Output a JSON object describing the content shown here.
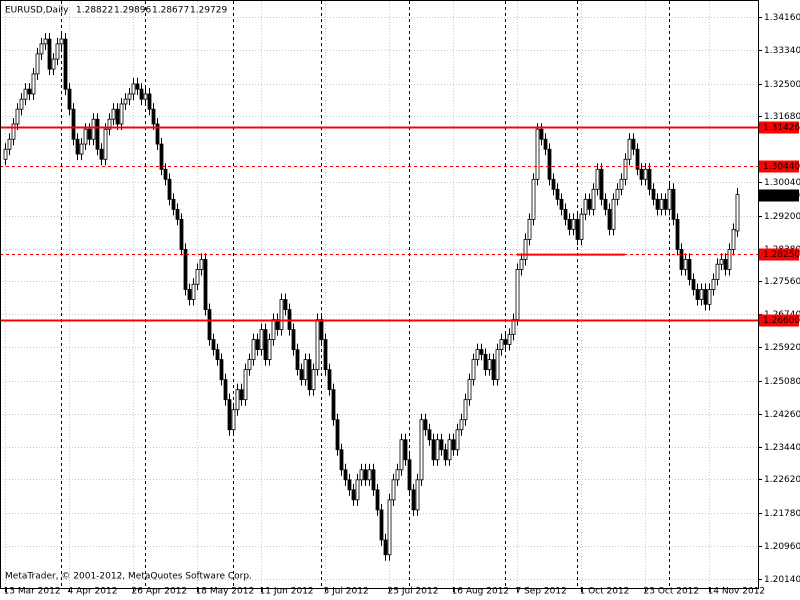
{
  "chart_data": {
    "type": "candlestick",
    "title": "EURUSD,Daily",
    "footer": "MetaTrader, © 2001-2012, MetaQuotes Software Corp.",
    "ylim": [
      1.1991,
      1.3456
    ],
    "yticks": [
      {
        "value": 1.3416,
        "label": "1.34160"
      },
      {
        "value": 1.3334,
        "label": "1.33340"
      },
      {
        "value": 1.325,
        "label": "1.32500"
      },
      {
        "value": 1.3168,
        "label": "1.31680"
      },
      {
        "value": 1.3004,
        "label": "1.30040"
      },
      {
        "value": 1.292,
        "label": "1.29200"
      },
      {
        "value": 1.2838,
        "label": "1.28380"
      },
      {
        "value": 1.2756,
        "label": "1.27560"
      },
      {
        "value": 1.2674,
        "label": "1.26740"
      },
      {
        "value": 1.2592,
        "label": "1.25920"
      },
      {
        "value": 1.2508,
        "label": "1.25080"
      },
      {
        "value": 1.2426,
        "label": "1.24260"
      },
      {
        "value": 1.2344,
        "label": "1.23440"
      },
      {
        "value": 1.2262,
        "label": "1.22620"
      },
      {
        "value": 1.2178,
        "label": "1.21780"
      },
      {
        "value": 1.2096,
        "label": "1.20960"
      },
      {
        "value": 1.2014,
        "label": "1.20140"
      }
    ],
    "xticks": [
      {
        "value": 0,
        "label": "13 Mar 2012"
      },
      {
        "value": 16,
        "label": "4 Apr 2012"
      },
      {
        "value": 32,
        "label": "26 Apr 2012"
      },
      {
        "value": 48,
        "label": "18 May 2012"
      },
      {
        "value": 64,
        "label": "11 Jun 2012"
      },
      {
        "value": 80,
        "label": "3 Jul 2012"
      },
      {
        "value": 96,
        "label": "25 Jul 2012"
      },
      {
        "value": 112,
        "label": "16 Aug 2012"
      },
      {
        "value": 128,
        "label": "7 Sep 2012"
      },
      {
        "value": 144,
        "label": "1 Oct 2012"
      },
      {
        "value": 160,
        "label": "23 Oct 2012"
      },
      {
        "value": 176,
        "label": "14 Nov 2012"
      }
    ],
    "separators": [
      14,
      35,
      57,
      79,
      101,
      125,
      143,
      166
    ],
    "grid": true,
    "colors": {
      "up": "#ffffff",
      "down": "#000000",
      "outline": "#000000",
      "level": "#ff0000",
      "price": "#000000"
    },
    "levels": [
      {
        "value": 1.31426,
        "label": "1.31426",
        "style": "solid"
      },
      {
        "value": 1.3044,
        "label": "1.30440",
        "style": "dashed"
      },
      {
        "value": 1.2825,
        "label": "1.28250",
        "style": "dashed"
      },
      {
        "value": 1.266,
        "label": "1.26600",
        "style": "solid"
      }
    ],
    "trendline": {
      "x": [
        128,
        155
      ],
      "y": [
        1.2823,
        1.2823
      ]
    },
    "ohlc": [
      [
        1.3061,
        1.3101,
        1.3046,
        1.3086
      ],
      [
        1.3086,
        1.3126,
        1.3071,
        1.3111
      ],
      [
        1.3111,
        1.3164,
        1.3096,
        1.3149
      ],
      [
        1.3149,
        1.3201,
        1.3134,
        1.3186
      ],
      [
        1.3186,
        1.3226,
        1.3171,
        1.3211
      ],
      [
        1.3211,
        1.3251,
        1.3196,
        1.3236
      ],
      [
        1.3236,
        1.3251,
        1.3209,
        1.3224
      ],
      [
        1.3224,
        1.3289,
        1.3209,
        1.3274
      ],
      [
        1.3274,
        1.3339,
        1.3259,
        1.3324
      ],
      [
        1.3324,
        1.3364,
        1.3309,
        1.3349
      ],
      [
        1.3349,
        1.3376,
        1.3334,
        1.3361
      ],
      [
        1.3361,
        1.3376,
        1.3271,
        1.3286
      ],
      [
        1.3286,
        1.3326,
        1.3271,
        1.3311
      ],
      [
        1.3311,
        1.3364,
        1.3296,
        1.3349
      ],
      [
        1.3349,
        1.3376,
        1.3334,
        1.3361
      ],
      [
        1.3361,
        1.3376,
        1.3221,
        1.3236
      ],
      [
        1.3236,
        1.3251,
        1.3171,
        1.3186
      ],
      [
        1.3186,
        1.3201,
        1.3096,
        1.3111
      ],
      [
        1.3111,
        1.3126,
        1.3059,
        1.3074
      ],
      [
        1.3074,
        1.3114,
        1.3059,
        1.3099
      ],
      [
        1.3099,
        1.3151,
        1.3084,
        1.3136
      ],
      [
        1.3136,
        1.3151,
        1.3096,
        1.3111
      ],
      [
        1.3111,
        1.3176,
        1.3096,
        1.3161
      ],
      [
        1.3161,
        1.3176,
        1.3071,
        1.3086
      ],
      [
        1.3086,
        1.3101,
        1.3046,
        1.3061
      ],
      [
        1.3061,
        1.3151,
        1.3046,
        1.3136
      ],
      [
        1.3136,
        1.3176,
        1.3121,
        1.3161
      ],
      [
        1.3161,
        1.3201,
        1.3146,
        1.3186
      ],
      [
        1.3186,
        1.3201,
        1.3134,
        1.3149
      ],
      [
        1.3149,
        1.3214,
        1.3134,
        1.3199
      ],
      [
        1.3199,
        1.3226,
        1.3184,
        1.3211
      ],
      [
        1.3211,
        1.3239,
        1.3196,
        1.3224
      ],
      [
        1.3224,
        1.3264,
        1.3209,
        1.3249
      ],
      [
        1.3249,
        1.3264,
        1.3221,
        1.3236
      ],
      [
        1.3236,
        1.3251,
        1.3196,
        1.3211
      ],
      [
        1.3211,
        1.3239,
        1.3196,
        1.3224
      ],
      [
        1.3224,
        1.3239,
        1.3171,
        1.3186
      ],
      [
        1.3186,
        1.3201,
        1.3134,
        1.3149
      ],
      [
        1.3149,
        1.3164,
        1.3084,
        1.3099
      ],
      [
        1.3099,
        1.3114,
        1.3021,
        1.3036
      ],
      [
        1.3036,
        1.3051,
        1.2996,
        1.3011
      ],
      [
        1.3011,
        1.3026,
        1.2946,
        1.2961
      ],
      [
        1.2961,
        1.2976,
        1.2921,
        1.2936
      ],
      [
        1.2936,
        1.2951,
        1.2896,
        1.2911
      ],
      [
        1.2911,
        1.2926,
        1.2821,
        1.2836
      ],
      [
        1.2836,
        1.2851,
        1.2721,
        1.2736
      ],
      [
        1.2736,
        1.2751,
        1.2696,
        1.2711
      ],
      [
        1.2711,
        1.2764,
        1.2696,
        1.2749
      ],
      [
        1.2749,
        1.2801,
        1.2734,
        1.2786
      ],
      [
        1.2786,
        1.2826,
        1.2771,
        1.2811
      ],
      [
        1.2811,
        1.2826,
        1.2671,
        1.2686
      ],
      [
        1.2686,
        1.2701,
        1.2596,
        1.2611
      ],
      [
        1.2611,
        1.2626,
        1.2571,
        1.2586
      ],
      [
        1.2586,
        1.2601,
        1.2546,
        1.2561
      ],
      [
        1.2561,
        1.2576,
        1.2496,
        1.2511
      ],
      [
        1.2511,
        1.2526,
        1.2446,
        1.2461
      ],
      [
        1.2461,
        1.2476,
        1.2371,
        1.2386
      ],
      [
        1.2386,
        1.2451,
        1.2371,
        1.2436
      ],
      [
        1.2436,
        1.2501,
        1.2421,
        1.2486
      ],
      [
        1.2486,
        1.2501,
        1.2446,
        1.2461
      ],
      [
        1.2461,
        1.2551,
        1.2446,
        1.2536
      ],
      [
        1.2536,
        1.2576,
        1.2521,
        1.2561
      ],
      [
        1.2561,
        1.2626,
        1.2546,
        1.2611
      ],
      [
        1.2611,
        1.2626,
        1.2571,
        1.2586
      ],
      [
        1.2586,
        1.2651,
        1.2571,
        1.2636
      ],
      [
        1.2636,
        1.2651,
        1.2546,
        1.2561
      ],
      [
        1.2561,
        1.2626,
        1.2546,
        1.2611
      ],
      [
        1.2611,
        1.2676,
        1.2596,
        1.2661
      ],
      [
        1.2661,
        1.2676,
        1.2621,
        1.2636
      ],
      [
        1.2636,
        1.2726,
        1.2621,
        1.2711
      ],
      [
        1.2711,
        1.2726,
        1.2671,
        1.2686
      ],
      [
        1.2686,
        1.2701,
        1.2621,
        1.2636
      ],
      [
        1.2636,
        1.2651,
        1.2571,
        1.2586
      ],
      [
        1.2586,
        1.2601,
        1.2521,
        1.2536
      ],
      [
        1.2536,
        1.2551,
        1.2496,
        1.2511
      ],
      [
        1.2511,
        1.2576,
        1.2496,
        1.2561
      ],
      [
        1.2561,
        1.2576,
        1.2471,
        1.2486
      ],
      [
        1.2486,
        1.2551,
        1.2471,
        1.2536
      ],
      [
        1.2536,
        1.2676,
        1.2521,
        1.2661
      ],
      [
        1.2661,
        1.2676,
        1.2596,
        1.2611
      ],
      [
        1.2611,
        1.2626,
        1.2521,
        1.2536
      ],
      [
        1.2536,
        1.2551,
        1.2471,
        1.2486
      ],
      [
        1.2486,
        1.2501,
        1.2396,
        1.2411
      ],
      [
        1.2411,
        1.2426,
        1.2321,
        1.2336
      ],
      [
        1.2336,
        1.2351,
        1.2271,
        1.2286
      ],
      [
        1.2286,
        1.2301,
        1.2246,
        1.2261
      ],
      [
        1.2261,
        1.2276,
        1.2221,
        1.2236
      ],
      [
        1.2236,
        1.2251,
        1.2196,
        1.2211
      ],
      [
        1.2211,
        1.2276,
        1.2196,
        1.2261
      ],
      [
        1.2261,
        1.2301,
        1.2246,
        1.2286
      ],
      [
        1.2286,
        1.2301,
        1.2246,
        1.2261
      ],
      [
        1.2261,
        1.2301,
        1.2246,
        1.2286
      ],
      [
        1.2286,
        1.2301,
        1.2221,
        1.2236
      ],
      [
        1.2236,
        1.2251,
        1.2171,
        1.2186
      ],
      [
        1.2186,
        1.2201,
        1.2096,
        1.2111
      ],
      [
        1.2111,
        1.2126,
        1.2059,
        1.2074
      ],
      [
        1.2074,
        1.2226,
        1.2059,
        1.2211
      ],
      [
        1.2211,
        1.2276,
        1.2196,
        1.2261
      ],
      [
        1.2261,
        1.2301,
        1.2246,
        1.2286
      ],
      [
        1.2286,
        1.2376,
        1.2271,
        1.2361
      ],
      [
        1.2361,
        1.2376,
        1.2296,
        1.2311
      ],
      [
        1.2311,
        1.2326,
        1.2221,
        1.2236
      ],
      [
        1.2236,
        1.2251,
        1.2171,
        1.2186
      ],
      [
        1.2186,
        1.2276,
        1.2171,
        1.2261
      ],
      [
        1.2261,
        1.2426,
        1.2246,
        1.2411
      ],
      [
        1.2411,
        1.2426,
        1.2371,
        1.2386
      ],
      [
        1.2386,
        1.2401,
        1.2346,
        1.2361
      ],
      [
        1.2361,
        1.2376,
        1.2296,
        1.2311
      ],
      [
        1.2311,
        1.2376,
        1.2296,
        1.2361
      ],
      [
        1.2361,
        1.2376,
        1.2321,
        1.2336
      ],
      [
        1.2336,
        1.2351,
        1.2296,
        1.2311
      ],
      [
        1.2311,
        1.2376,
        1.2296,
        1.2361
      ],
      [
        1.2361,
        1.2376,
        1.2321,
        1.2336
      ],
      [
        1.2336,
        1.2401,
        1.2321,
        1.2386
      ],
      [
        1.2386,
        1.2426,
        1.2371,
        1.2411
      ],
      [
        1.2411,
        1.2476,
        1.2396,
        1.2461
      ],
      [
        1.2461,
        1.2526,
        1.2446,
        1.2511
      ],
      [
        1.2511,
        1.2576,
        1.2496,
        1.2561
      ],
      [
        1.2561,
        1.2601,
        1.2546,
        1.2586
      ],
      [
        1.2586,
        1.2601,
        1.2559,
        1.2574
      ],
      [
        1.2574,
        1.2589,
        1.2521,
        1.2536
      ],
      [
        1.2536,
        1.2576,
        1.2521,
        1.2561
      ],
      [
        1.2561,
        1.2576,
        1.2496,
        1.2511
      ],
      [
        1.2511,
        1.2601,
        1.2496,
        1.2586
      ],
      [
        1.2586,
        1.2626,
        1.2571,
        1.2611
      ],
      [
        1.2611,
        1.2626,
        1.2584,
        1.2599
      ],
      [
        1.2599,
        1.2639,
        1.2584,
        1.2624
      ],
      [
        1.2624,
        1.2676,
        1.2609,
        1.2661
      ],
      [
        1.2661,
        1.2801,
        1.2646,
        1.2786
      ],
      [
        1.2786,
        1.2826,
        1.2771,
        1.2811
      ],
      [
        1.2811,
        1.2876,
        1.2796,
        1.2861
      ],
      [
        1.2861,
        1.2926,
        1.2846,
        1.2911
      ],
      [
        1.2911,
        1.3026,
        1.2896,
        1.3011
      ],
      [
        1.3011,
        1.3151,
        1.2996,
        1.3136
      ],
      [
        1.3136,
        1.3151,
        1.3096,
        1.3111
      ],
      [
        1.3111,
        1.3126,
        1.3071,
        1.3086
      ],
      [
        1.3086,
        1.3101,
        1.2996,
        1.3011
      ],
      [
        1.3011,
        1.3026,
        1.2971,
        1.2986
      ],
      [
        1.2986,
        1.3001,
        1.2946,
        1.2961
      ],
      [
        1.2961,
        1.2976,
        1.2921,
        1.2936
      ],
      [
        1.2936,
        1.2951,
        1.2896,
        1.2911
      ],
      [
        1.2911,
        1.2926,
        1.2871,
        1.2886
      ],
      [
        1.2886,
        1.2926,
        1.2871,
        1.2911
      ],
      [
        1.2911,
        1.2926,
        1.2846,
        1.2861
      ],
      [
        1.2861,
        1.2939,
        1.2846,
        1.2924
      ],
      [
        1.2924,
        1.2976,
        1.2909,
        1.2961
      ],
      [
        1.2961,
        1.2976,
        1.2921,
        1.2936
      ],
      [
        1.2936,
        1.3001,
        1.2921,
        1.2986
      ],
      [
        1.2986,
        1.3051,
        1.2971,
        1.3036
      ],
      [
        1.3036,
        1.3051,
        1.2946,
        1.2961
      ],
      [
        1.2961,
        1.2976,
        1.2921,
        1.2936
      ],
      [
        1.2936,
        1.2951,
        1.2871,
        1.2886
      ],
      [
        1.2886,
        1.2976,
        1.2871,
        1.2961
      ],
      [
        1.2961,
        1.3001,
        1.2946,
        1.2986
      ],
      [
        1.2986,
        1.3026,
        1.2971,
        1.3011
      ],
      [
        1.3011,
        1.3076,
        1.2996,
        1.3061
      ],
      [
        1.3061,
        1.3126,
        1.3046,
        1.3111
      ],
      [
        1.3111,
        1.3126,
        1.3071,
        1.3086
      ],
      [
        1.3086,
        1.3101,
        1.3021,
        1.3036
      ],
      [
        1.3036,
        1.3051,
        1.2996,
        1.3011
      ],
      [
        1.3011,
        1.3051,
        1.2996,
        1.3036
      ],
      [
        1.3036,
        1.3051,
        1.2971,
        1.2986
      ],
      [
        1.2986,
        1.3001,
        1.2946,
        1.2961
      ],
      [
        1.2961,
        1.2976,
        1.2921,
        1.2936
      ],
      [
        1.2936,
        1.2976,
        1.2921,
        1.2961
      ],
      [
        1.2961,
        1.2976,
        1.2921,
        1.2936
      ],
      [
        1.2936,
        1.3001,
        1.2921,
        1.2986
      ],
      [
        1.2986,
        1.3001,
        1.2896,
        1.2911
      ],
      [
        1.2911,
        1.2926,
        1.2821,
        1.2836
      ],
      [
        1.2836,
        1.2851,
        1.2771,
        1.2786
      ],
      [
        1.2786,
        1.2826,
        1.2771,
        1.2811
      ],
      [
        1.2811,
        1.2826,
        1.2746,
        1.2761
      ],
      [
        1.2761,
        1.2776,
        1.2721,
        1.2736
      ],
      [
        1.2736,
        1.2751,
        1.2696,
        1.2711
      ],
      [
        1.2711,
        1.2751,
        1.2696,
        1.2736
      ],
      [
        1.2736,
        1.2751,
        1.2684,
        1.2699
      ],
      [
        1.2699,
        1.2751,
        1.2684,
        1.2736
      ],
      [
        1.2736,
        1.2776,
        1.2721,
        1.2761
      ],
      [
        1.2761,
        1.2814,
        1.2746,
        1.2799
      ],
      [
        1.2799,
        1.2826,
        1.2784,
        1.2811
      ],
      [
        1.2811,
        1.2826,
        1.2771,
        1.2786
      ],
      [
        1.2786,
        1.2851,
        1.2771,
        1.2836
      ],
      [
        1.2836,
        1.2901,
        1.2821,
        1.2886
      ],
      [
        1.28822,
        1.29896,
        1.28677,
        1.29729
      ]
    ]
  }
}
